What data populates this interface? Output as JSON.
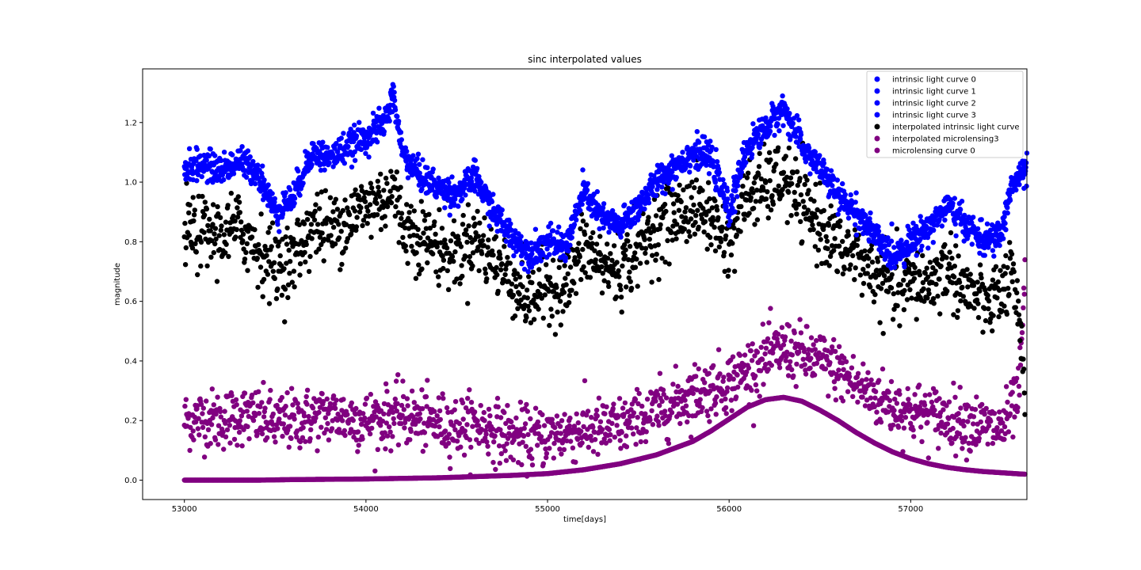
{
  "chart_data": {
    "type": "scatter",
    "title": "sinc interpolated values",
    "xlabel": "time[days]",
    "ylabel": "magnitude",
    "xlim": [
      52770,
      57640
    ],
    "ylim": [
      -0.065,
      1.38
    ],
    "x_ticks": [
      53000,
      54000,
      55000,
      56000,
      57000
    ],
    "x_tick_labels": [
      "53000",
      "54000",
      "55000",
      "56000",
      "57000"
    ],
    "y_ticks": [
      0.0,
      0.2,
      0.4,
      0.6,
      0.8,
      1.0,
      1.2
    ],
    "y_tick_labels": [
      "0.0",
      "0.2",
      "0.4",
      "0.6",
      "0.8",
      "1.0",
      "1.2"
    ],
    "grid": false,
    "legend_position": "top-right",
    "colors": {
      "blue": "#0000ff",
      "black": "#000000",
      "purple": "#800080"
    },
    "legend": [
      {
        "label": "intrinsic light curve 0",
        "color": "#0000ff"
      },
      {
        "label": "intrinsic light curve 1",
        "color": "#0000ff"
      },
      {
        "label": "intrinsic light curve 2",
        "color": "#0000ff"
      },
      {
        "label": "intrinsic light curve 3",
        "color": "#0000ff"
      },
      {
        "label": "interpolated intrinsic light curve",
        "color": "#000000"
      },
      {
        "label": "interpolated microlensing3",
        "color": "#800080"
      },
      {
        "label": "microlensing curve 0",
        "color": "#800080"
      }
    ],
    "series": [
      {
        "name": "intrinsic light curve 0",
        "color": "#0000ff",
        "x": [
          53000,
          53100,
          53200,
          53300,
          53400,
          53500,
          53600,
          53700,
          53800,
          53900,
          54000,
          54100,
          54150,
          54200,
          54300,
          54400,
          54500,
          54600,
          54700,
          54800,
          54900,
          55000,
          55100,
          55200,
          55300,
          55400,
          55500,
          55600,
          55700,
          55800,
          55900,
          56000,
          56100,
          56200,
          56300,
          56400,
          56500,
          56600,
          56700,
          56800,
          56900,
          57000,
          57100,
          57200,
          57300,
          57400,
          57500,
          57550,
          57600,
          57640
        ],
        "y": [
          1.05,
          1.06,
          1.04,
          1.07,
          1.04,
          0.9,
          0.95,
          1.1,
          1.08,
          1.12,
          1.15,
          1.2,
          1.29,
          1.1,
          1.02,
          0.98,
          0.96,
          1.02,
          0.9,
          0.82,
          0.76,
          0.8,
          0.78,
          0.97,
          0.88,
          0.85,
          0.92,
          1.0,
          1.05,
          1.1,
          1.08,
          0.9,
          1.12,
          1.18,
          1.25,
          1.12,
          1.05,
          0.95,
          0.9,
          0.82,
          0.75,
          0.8,
          0.85,
          0.92,
          0.86,
          0.8,
          0.82,
          0.98,
          1.02,
          1.04
        ]
      },
      {
        "name": "interpolated intrinsic light curve",
        "color": "#000000",
        "x": [
          53000,
          53100,
          53200,
          53300,
          53400,
          53500,
          53600,
          53700,
          53800,
          53900,
          54000,
          54100,
          54150,
          54200,
          54300,
          54400,
          54500,
          54600,
          54700,
          54800,
          54900,
          55000,
          55100,
          55200,
          55300,
          55400,
          55500,
          55600,
          55700,
          55800,
          55900,
          56000,
          56100,
          56200,
          56300,
          56400,
          56500,
          56600,
          56700,
          56800,
          56900,
          57000,
          57100,
          57200,
          57300,
          57400,
          57500,
          57550,
          57600,
          57630
        ],
        "y": [
          0.84,
          0.83,
          0.82,
          0.85,
          0.78,
          0.72,
          0.74,
          0.86,
          0.84,
          0.88,
          0.92,
          0.95,
          0.98,
          0.86,
          0.82,
          0.78,
          0.76,
          0.82,
          0.74,
          0.68,
          0.6,
          0.66,
          0.64,
          0.78,
          0.72,
          0.7,
          0.78,
          0.85,
          0.88,
          0.92,
          0.88,
          0.8,
          0.96,
          0.98,
          1.02,
          0.92,
          0.86,
          0.78,
          0.76,
          0.7,
          0.64,
          0.66,
          0.66,
          0.72,
          0.64,
          0.6,
          0.62,
          0.7,
          0.5,
          0.25
        ]
      },
      {
        "name": "interpolated microlensing3",
        "color": "#800080",
        "x": [
          53000,
          53100,
          53200,
          53300,
          53400,
          53500,
          53600,
          53700,
          53800,
          53900,
          54000,
          54100,
          54200,
          54300,
          54400,
          54500,
          54600,
          54700,
          54800,
          54900,
          55000,
          55100,
          55200,
          55300,
          55400,
          55500,
          55600,
          55700,
          55800,
          55900,
          56000,
          56100,
          56200,
          56300,
          56400,
          56500,
          56600,
          56700,
          56800,
          56900,
          57000,
          57100,
          57200,
          57300,
          57400,
          57500,
          57550,
          57600,
          57630
        ],
        "y": [
          0.2,
          0.21,
          0.2,
          0.22,
          0.21,
          0.19,
          0.2,
          0.21,
          0.22,
          0.21,
          0.2,
          0.21,
          0.22,
          0.2,
          0.19,
          0.18,
          0.19,
          0.17,
          0.15,
          0.14,
          0.15,
          0.16,
          0.17,
          0.17,
          0.18,
          0.2,
          0.23,
          0.26,
          0.29,
          0.31,
          0.33,
          0.37,
          0.41,
          0.44,
          0.42,
          0.4,
          0.37,
          0.32,
          0.28,
          0.25,
          0.23,
          0.22,
          0.21,
          0.2,
          0.18,
          0.17,
          0.22,
          0.3,
          0.7
        ]
      },
      {
        "name": "microlensing curve 0",
        "color": "#800080",
        "x": [
          53000,
          53200,
          53400,
          53600,
          53800,
          54000,
          54200,
          54400,
          54600,
          54800,
          55000,
          55200,
          55400,
          55600,
          55800,
          55900,
          56000,
          56100,
          56200,
          56300,
          56400,
          56500,
          56600,
          56700,
          56800,
          56900,
          57000,
          57100,
          57200,
          57300,
          57400,
          57500,
          57600,
          57630
        ],
        "y": [
          0.0,
          0.0,
          0.0,
          0.002,
          0.003,
          0.004,
          0.006,
          0.008,
          0.012,
          0.016,
          0.022,
          0.035,
          0.055,
          0.085,
          0.13,
          0.165,
          0.205,
          0.245,
          0.27,
          0.278,
          0.265,
          0.235,
          0.2,
          0.16,
          0.125,
          0.095,
          0.072,
          0.055,
          0.043,
          0.035,
          0.029,
          0.025,
          0.021,
          0.02
        ]
      }
    ]
  }
}
